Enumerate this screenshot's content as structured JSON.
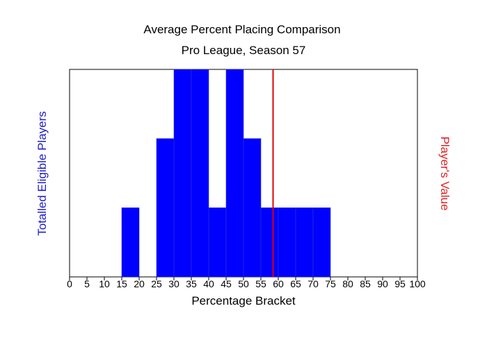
{
  "chart_data": {
    "type": "bar",
    "title": "Average Percent Placing Comparison",
    "subtitle": "Pro League, Season 57",
    "xlabel": "Percentage Bracket",
    "ylabel": "Totalled Eligible Players",
    "ylabel_right": "Player's Value",
    "xlim": [
      0,
      100
    ],
    "ylim": [
      0,
      3
    ],
    "x_ticks": [
      "0",
      "5",
      "10",
      "15",
      "20",
      "25",
      "30",
      "35",
      "40",
      "45",
      "50",
      "55",
      "60",
      "65",
      "70",
      "75",
      "80",
      "85",
      "90",
      "95",
      "100"
    ],
    "bin_width": 5,
    "bins": [
      {
        "x": 15,
        "value": 1
      },
      {
        "x": 25,
        "value": 2
      },
      {
        "x": 30,
        "value": 3
      },
      {
        "x": 35,
        "value": 3
      },
      {
        "x": 40,
        "value": 1
      },
      {
        "x": 45,
        "value": 3
      },
      {
        "x": 50,
        "value": 2
      },
      {
        "x": 55,
        "value": 1
      },
      {
        "x": 60,
        "value": 1
      },
      {
        "x": 65,
        "value": 1
      },
      {
        "x": 70,
        "value": 1
      }
    ],
    "player_value": 58.5,
    "grid": false,
    "colors": {
      "bars": "#0000ff",
      "bar_edge": "#3333cc",
      "player_line": "#e00000",
      "ylabel": "#1a1acc",
      "ylabel_right": "#e02020"
    }
  }
}
